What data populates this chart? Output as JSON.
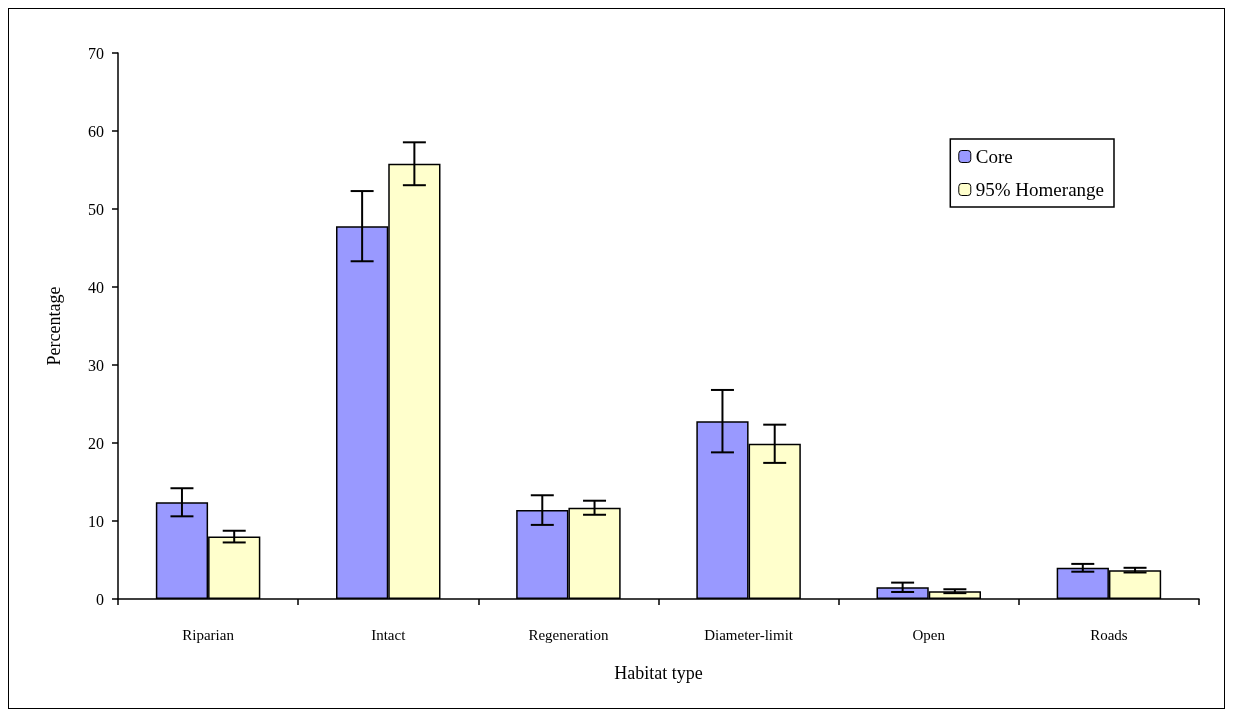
{
  "chart_data": {
    "type": "bar",
    "xlabel": "Habitat type",
    "ylabel": "Percentage",
    "categories": [
      "Riparian",
      "Intact",
      "Regeneration",
      "Diameter-limit",
      "Open",
      "Roads"
    ],
    "series": [
      {
        "name": "Core",
        "color": "#9999ff",
        "values": [
          12.4,
          47.8,
          11.4,
          22.8,
          1.5,
          4.0
        ],
        "errors": [
          1.8,
          4.5,
          1.9,
          4.0,
          0.6,
          0.5
        ]
      },
      {
        "name": "95% Homerange",
        "color": "#ffffcc",
        "values": [
          8.0,
          55.8,
          11.7,
          19.9,
          1.0,
          3.7
        ],
        "errors": [
          0.75,
          2.75,
          0.9,
          2.45,
          0.25,
          0.3
        ]
      }
    ],
    "ylim": [
      0,
      70
    ],
    "yticks": [
      0,
      10,
      20,
      30,
      40,
      50,
      60,
      70
    ],
    "grid": false,
    "legend": "top right"
  }
}
